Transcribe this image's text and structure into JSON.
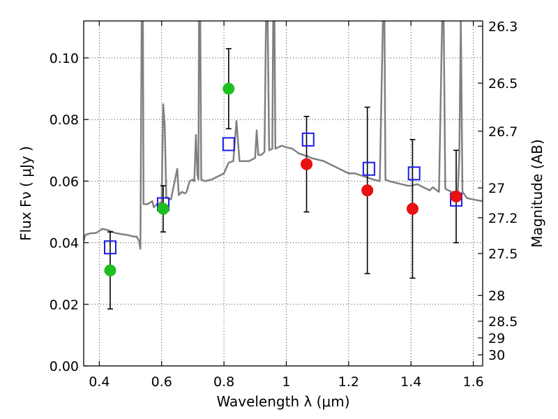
{
  "chart_data": {
    "type": "scatter",
    "xlabel": "Wavelength  λ (μm)",
    "ylabel": "Flux  Fν  ( μJy )",
    "y2label": "Magnitude (AB)",
    "xlim": [
      0.35,
      1.63
    ],
    "ylim": [
      0.0,
      0.112
    ],
    "grid": true,
    "x_ticks": [
      {
        "value": 0.4,
        "label": "0.4"
      },
      {
        "value": 0.6,
        "label": "0.6"
      },
      {
        "value": 0.8,
        "label": "0.8"
      },
      {
        "value": 1.0,
        "label": "1"
      },
      {
        "value": 1.2,
        "label": "1.2"
      },
      {
        "value": 1.4,
        "label": "1.4"
      },
      {
        "value": 1.6,
        "label": "1.6"
      }
    ],
    "y_ticks": [
      {
        "value": 0.0,
        "label": "0.00"
      },
      {
        "value": 0.02,
        "label": "0.02"
      },
      {
        "value": 0.04,
        "label": "0.04"
      },
      {
        "value": 0.06,
        "label": "0.06"
      },
      {
        "value": 0.08,
        "label": "0.08"
      },
      {
        "value": 0.1,
        "label": "0.10"
      }
    ],
    "y2_ticks": [
      {
        "label": "26.3",
        "flux": 0.1103
      },
      {
        "label": "26.5",
        "flux": 0.0918
      },
      {
        "label": "26.7",
        "flux": 0.0762
      },
      {
        "label": "27",
        "flux": 0.0578
      },
      {
        "label": "27.2",
        "flux": 0.0481
      },
      {
        "label": "27.5",
        "flux": 0.0365
      },
      {
        "label": "28",
        "flux": 0.0229
      },
      {
        "label": "28.5",
        "flux": 0.0145
      },
      {
        "label": "29",
        "flux": 0.0091
      },
      {
        "label": "30",
        "flux": 0.0036
      }
    ],
    "model_spectrum": {
      "color": "#808080",
      "points": [
        [
          0.35,
          0.0405
        ],
        [
          0.355,
          0.0425
        ],
        [
          0.37,
          0.043
        ],
        [
          0.39,
          0.0432
        ],
        [
          0.41,
          0.0445
        ],
        [
          0.43,
          0.044
        ],
        [
          0.45,
          0.0432
        ],
        [
          0.47,
          0.0428
        ],
        [
          0.49,
          0.0425
        ],
        [
          0.51,
          0.042
        ],
        [
          0.52,
          0.042
        ],
        [
          0.528,
          0.0405
        ],
        [
          0.532,
          0.038
        ],
        [
          0.536,
          0.1125
        ],
        [
          0.54,
          0.1125
        ],
        [
          0.542,
          0.0525
        ],
        [
          0.555,
          0.0525
        ],
        [
          0.57,
          0.0535
        ],
        [
          0.575,
          0.0515
        ],
        [
          0.585,
          0.0525
        ],
        [
          0.59,
          0.052
        ],
        [
          0.595,
          0.053
        ],
        [
          0.6,
          0.0528
        ],
        [
          0.605,
          0.085
        ],
        [
          0.61,
          0.078
        ],
        [
          0.615,
          0.055
        ],
        [
          0.62,
          0.0545
        ],
        [
          0.63,
          0.054
        ],
        [
          0.65,
          0.064
        ],
        [
          0.655,
          0.0555
        ],
        [
          0.665,
          0.0565
        ],
        [
          0.675,
          0.056
        ],
        [
          0.68,
          0.0565
        ],
        [
          0.69,
          0.06
        ],
        [
          0.7,
          0.0605
        ],
        [
          0.705,
          0.06
        ],
        [
          0.71,
          0.075
        ],
        [
          0.715,
          0.062
        ],
        [
          0.718,
          0.0605
        ],
        [
          0.72,
          0.1125
        ],
        [
          0.724,
          0.1125
        ],
        [
          0.727,
          0.0605
        ],
        [
          0.74,
          0.06
        ],
        [
          0.76,
          0.0605
        ],
        [
          0.78,
          0.0615
        ],
        [
          0.8,
          0.0625
        ],
        [
          0.815,
          0.066
        ],
        [
          0.83,
          0.0665
        ],
        [
          0.84,
          0.0795
        ],
        [
          0.85,
          0.0665
        ],
        [
          0.88,
          0.0665
        ],
        [
          0.9,
          0.0675
        ],
        [
          0.905,
          0.0765
        ],
        [
          0.91,
          0.0685
        ],
        [
          0.92,
          0.0685
        ],
        [
          0.93,
          0.0695
        ],
        [
          0.935,
          0.1125
        ],
        [
          0.94,
          0.1125
        ],
        [
          0.945,
          0.07
        ],
        [
          0.955,
          0.0705
        ],
        [
          0.958,
          0.1125
        ],
        [
          0.962,
          0.1125
        ],
        [
          0.965,
          0.0705
        ],
        [
          0.975,
          0.071
        ],
        [
          0.985,
          0.0715
        ],
        [
          1.0,
          0.071
        ],
        [
          1.02,
          0.0705
        ],
        [
          1.04,
          0.069
        ],
        [
          1.055,
          0.0685
        ],
        [
          1.07,
          0.068
        ],
        [
          1.08,
          0.0675
        ],
        [
          1.1,
          0.067
        ],
        [
          1.12,
          0.0665
        ],
        [
          1.14,
          0.0655
        ],
        [
          1.16,
          0.0645
        ],
        [
          1.18,
          0.0635
        ],
        [
          1.2,
          0.0625
        ],
        [
          1.22,
          0.0625
        ],
        [
          1.25,
          0.0615
        ],
        [
          1.28,
          0.0605
        ],
        [
          1.3,
          0.06
        ],
        [
          1.31,
          0.1125
        ],
        [
          1.315,
          0.1125
        ],
        [
          1.318,
          0.0605
        ],
        [
          1.33,
          0.06
        ],
        [
          1.35,
          0.0595
        ],
        [
          1.37,
          0.059
        ],
        [
          1.39,
          0.0585
        ],
        [
          1.4,
          0.0585
        ],
        [
          1.42,
          0.059
        ],
        [
          1.44,
          0.058
        ],
        [
          1.46,
          0.057
        ],
        [
          1.47,
          0.058
        ],
        [
          1.49,
          0.0565
        ],
        [
          1.5,
          0.1125
        ],
        [
          1.505,
          0.1125
        ],
        [
          1.51,
          0.0575
        ],
        [
          1.53,
          0.0565
        ],
        [
          1.545,
          0.0565
        ],
        [
          1.55,
          0.0565
        ],
        [
          1.555,
          0.068
        ],
        [
          1.56,
          0.1125
        ],
        [
          1.565,
          0.0565
        ],
        [
          1.58,
          0.0545
        ],
        [
          1.6,
          0.054
        ],
        [
          1.63,
          0.0535
        ]
      ]
    },
    "observed": {
      "points": [
        {
          "x": 0.435,
          "y": 0.031,
          "yerr": 0.0125,
          "color": "#1fbf1f"
        },
        {
          "x": 0.605,
          "y": 0.051,
          "yerr": 0.0075,
          "color": "#1fbf1f"
        },
        {
          "x": 0.815,
          "y": 0.09,
          "yerr": 0.013,
          "color": "#1fbf1f"
        },
        {
          "x": 1.065,
          "y": 0.0655,
          "yerr": 0.0155,
          "color": "#e81010"
        },
        {
          "x": 1.26,
          "y": 0.057,
          "yerr": 0.027,
          "color": "#e81010"
        },
        {
          "x": 1.405,
          "y": 0.051,
          "yerr": 0.0225,
          "color": "#e81010"
        },
        {
          "x": 1.545,
          "y": 0.055,
          "yerr": 0.015,
          "color": "#e81010"
        }
      ],
      "errorbar_color": "#000000"
    },
    "model_photometry": {
      "color": "#1a1ae8",
      "points": [
        {
          "x": 0.435,
          "y": 0.0385
        },
        {
          "x": 0.605,
          "y": 0.0525
        },
        {
          "x": 0.815,
          "y": 0.072
        },
        {
          "x": 1.07,
          "y": 0.0735
        },
        {
          "x": 1.265,
          "y": 0.064
        },
        {
          "x": 1.41,
          "y": 0.0625
        },
        {
          "x": 1.545,
          "y": 0.054
        }
      ]
    }
  }
}
